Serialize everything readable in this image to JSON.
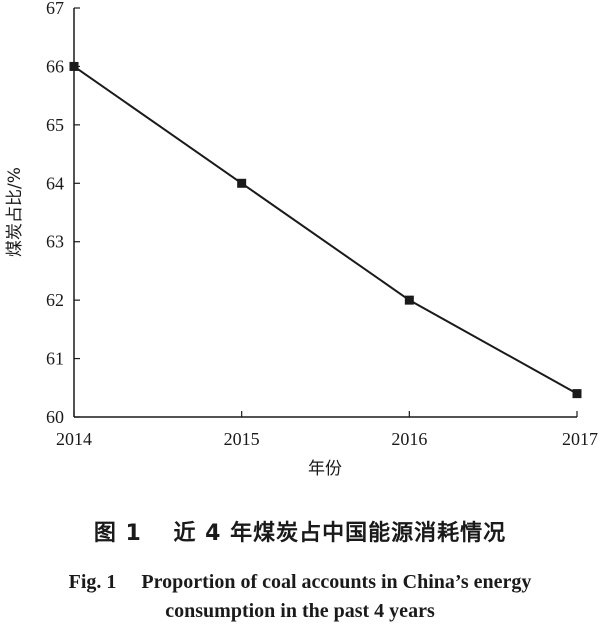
{
  "chart_data": {
    "type": "line",
    "x": [
      2014,
      2015,
      2016,
      2017
    ],
    "series": [
      {
        "values": [
          66,
          64,
          62,
          60.4
        ]
      }
    ],
    "xlabel": "年份",
    "ylabel": "煤炭占比/%",
    "xlim": [
      2014,
      2017
    ],
    "ylim": [
      60,
      67
    ],
    "xticks": [
      "2014",
      "2015",
      "2016",
      "2017"
    ],
    "yticks": [
      "60",
      "61",
      "62",
      "63",
      "64",
      "65",
      "66",
      "67"
    ],
    "grid": false,
    "marker": "square",
    "line_color": "#1a1a1a"
  },
  "caption": {
    "cn": "图 1　 近 4 年煤炭占中国能源消耗情况",
    "en_line1": "Fig. 1　 Proportion of coal accounts in China’s energy",
    "en_line2": "consumption in the past 4 years"
  }
}
